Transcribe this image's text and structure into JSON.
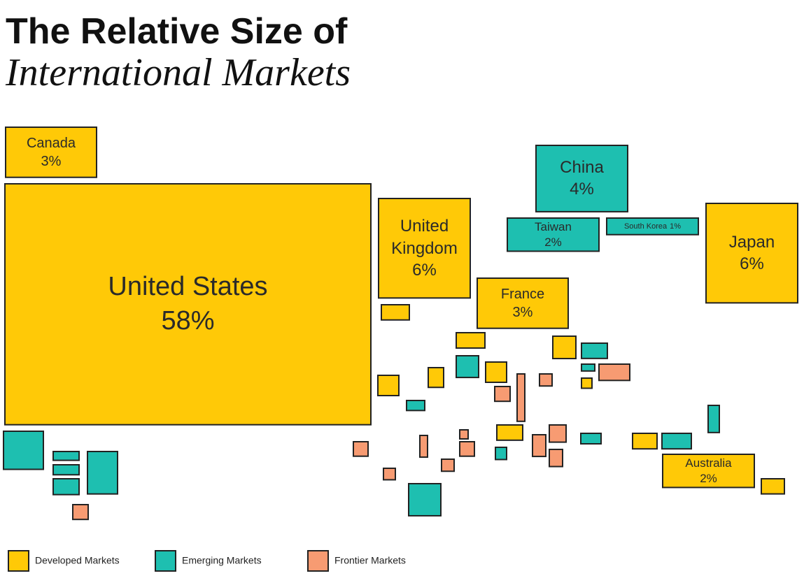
{
  "chart_data": {
    "type": "cartogram",
    "title": [
      "The Relative Size of",
      "International Markets"
    ],
    "series": [
      {
        "name": "Developed Markets",
        "color": "#ffc907",
        "categories": [
          "Canada",
          "United States",
          "United Kingdom",
          "France",
          "Japan",
          "Australia",
          null,
          null,
          null,
          null,
          null,
          null,
          null,
          null,
          null,
          null
        ],
        "values": [
          3,
          58,
          6,
          3,
          6,
          2,
          0.28,
          0.29,
          0.34,
          0.28,
          0.2,
          0.28,
          0.07,
          0.26,
          0.25,
          0.23
        ],
        "value_labels": [
          "3%",
          "58%",
          "6%",
          "3%",
          "6%",
          "2%",
          null,
          null,
          null,
          null,
          null,
          null,
          null,
          null,
          null,
          null
        ]
      },
      {
        "name": "Emerging Markets",
        "color": "#1ebfb0",
        "categories": [
          "China",
          "Taiwan",
          "South Korea",
          null,
          null,
          null,
          null,
          null,
          null,
          null,
          null,
          null,
          null,
          null,
          null,
          null,
          null
        ],
        "values": [
          4,
          2,
          1,
          1,
          0.15,
          0.17,
          0.27,
          0.84,
          0.32,
          0.26,
          0.06,
          0.12,
          0.68,
          0.14,
          0.09,
          0.3,
          0.2
        ],
        "value_labels": [
          "4%",
          "2%",
          "1%",
          null,
          null,
          null,
          null,
          null,
          null,
          null,
          null,
          null,
          null,
          null,
          null,
          null,
          null
        ]
      },
      {
        "name": "Frontier Markets",
        "color": "#f79b72",
        "categories": [
          null,
          null,
          null,
          null,
          null,
          null,
          null,
          null,
          null,
          null,
          null,
          null,
          null,
          null
        ],
        "values": [
          0.15,
          0.33,
          0.1,
          0.15,
          0.24,
          0.14,
          0.09,
          0.11,
          0.05,
          0.14,
          0.1,
          0.19,
          0.19,
          0.15
        ]
      }
    ],
    "legend": "bottom-left"
  }
}
